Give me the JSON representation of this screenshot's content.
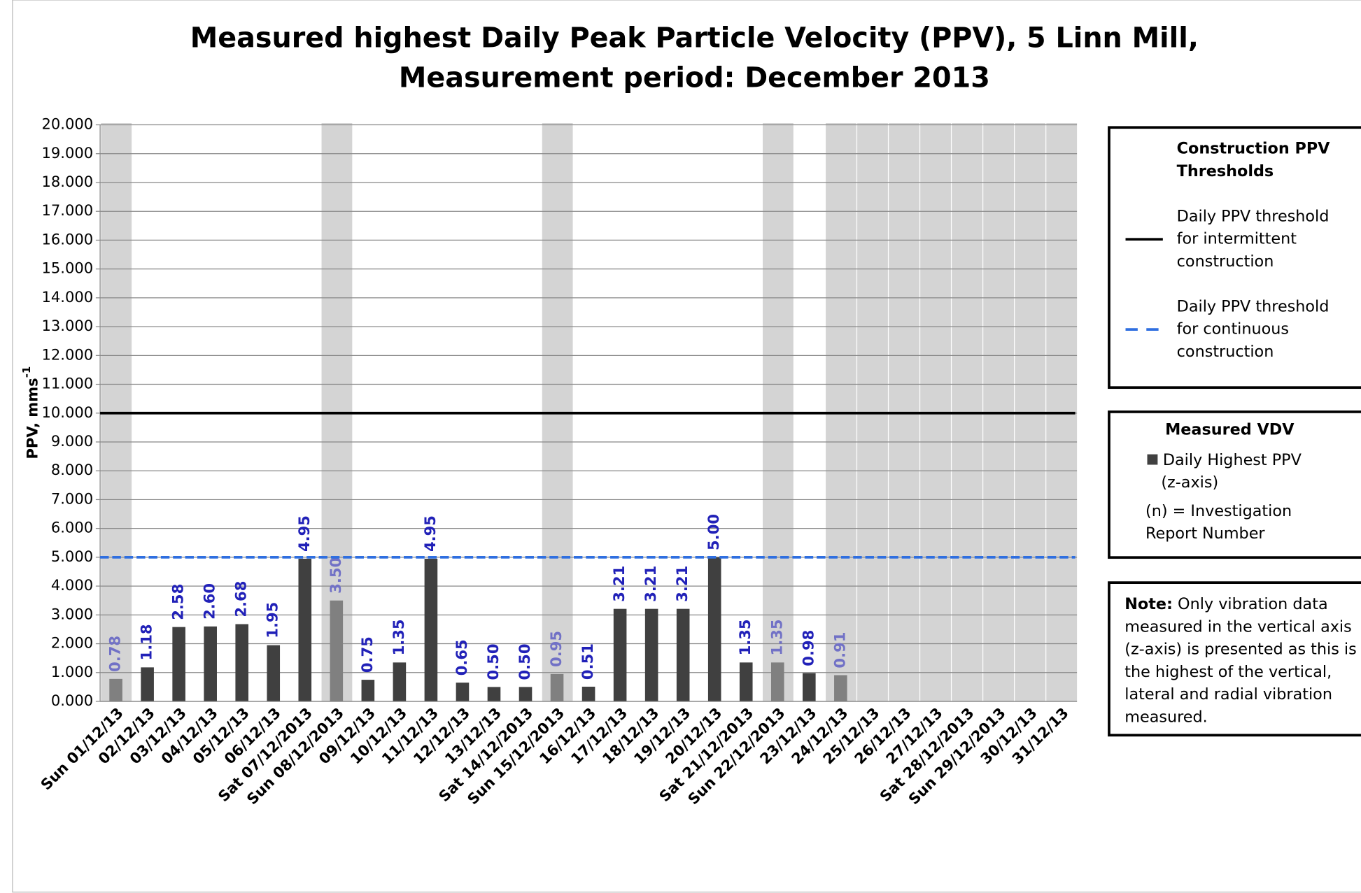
{
  "chart_data": {
    "type": "bar",
    "title_lines": [
      "Measured highest Daily Peak Particle Velocity (PPV), 5 Linn Mill,",
      "Measurement period: December 2013"
    ],
    "y_label": "PPV, mms",
    "y_label_sup": "-1",
    "categories": [
      "Sun 01/12/13",
      "02/12/13",
      "03/12/13",
      "04/12/13",
      "05/12/13",
      "06/12/13",
      "Sat 07/12/2013",
      "Sun 08/12/2013",
      "09/12/13",
      "10/12/13",
      "11/12/13",
      "12/12/13",
      "13/12/13",
      "Sat 14/12/2013",
      "Sun 15/12/2013",
      "16/12/13",
      "17/12/13",
      "18/12/13",
      "19/12/13",
      "20/12/13",
      "Sat 21/12/2013",
      "Sun 22/12/2013",
      "23/12/13",
      "24/12/13",
      "25/12/13",
      "26/12/13",
      "27/12/13",
      "Sat 28/12/2013",
      "Sun 29/12/2013",
      "30/12/13",
      "31/12/13"
    ],
    "values": [
      0.78,
      1.18,
      2.58,
      2.6,
      2.68,
      1.95,
      4.95,
      3.5,
      0.75,
      1.35,
      4.95,
      0.65,
      0.5,
      0.5,
      0.95,
      0.51,
      3.21,
      3.21,
      3.21,
      5.0,
      1.35,
      1.35,
      0.98,
      0.91,
      null,
      null,
      null,
      null,
      null,
      null,
      null
    ],
    "value_labels": [
      "0.78",
      "1.18",
      "2.58",
      "2.60",
      "2.68",
      "1.95",
      "4.95",
      "3.50",
      "0.75",
      "1.35",
      "4.95",
      "0.65",
      "0.50",
      "0.50",
      "0.95",
      "0.51",
      "3.21",
      "3.21",
      "3.21",
      "5.00",
      "1.35",
      "1.35",
      "0.98",
      "0.91",
      null,
      null,
      null,
      null,
      null,
      null,
      null
    ],
    "shaded": [
      true,
      false,
      false,
      false,
      false,
      false,
      false,
      true,
      false,
      false,
      false,
      false,
      false,
      false,
      true,
      false,
      false,
      false,
      false,
      false,
      false,
      true,
      false,
      true,
      true,
      true,
      true,
      true,
      true,
      true,
      true
    ],
    "color": "#404040",
    "shaded_color": "#808080",
    "label_color": "#2121b8",
    "shaded_label_color": "#7171c6",
    "band_color": "#d4d4d4",
    "ylim": [
      0,
      20
    ],
    "yticks": [
      {
        "value": 0,
        "label": "0.000"
      },
      {
        "value": 1,
        "label": "1.000"
      },
      {
        "value": 2,
        "label": "2.000"
      },
      {
        "value": 3,
        "label": "3.000"
      },
      {
        "value": 4,
        "label": "4.000"
      },
      {
        "value": 5,
        "label": "5.000"
      },
      {
        "value": 6,
        "label": "6.000"
      },
      {
        "value": 7,
        "label": "7.000"
      },
      {
        "value": 8,
        "label": "8.000"
      },
      {
        "value": 9,
        "label": "9.000"
      },
      {
        "value": 10,
        "label": "10.000"
      },
      {
        "value": 11,
        "label": "11.000"
      },
      {
        "value": 12,
        "label": "12.000"
      },
      {
        "value": 13,
        "label": "13.000"
      },
      {
        "value": 14,
        "label": "14.000"
      },
      {
        "value": 15,
        "label": "15.000"
      },
      {
        "value": 16,
        "label": "16.000"
      },
      {
        "value": 17,
        "label": "17.000"
      },
      {
        "value": 18,
        "label": "18.000"
      },
      {
        "value": 19,
        "label": "19.000"
      },
      {
        "value": 20,
        "label": "20.000"
      }
    ],
    "grid": true,
    "thresholds": [
      {
        "value": 10,
        "color": "#000000",
        "dashed": false,
        "name_lines": [
          "Daily PPV threshold",
          "for intermittent",
          "construction"
        ]
      },
      {
        "value": 5,
        "color": "#2f6fe0",
        "dashed": true,
        "name_lines": [
          "Daily PPV threshold",
          "for continuous",
          "construction"
        ]
      }
    ],
    "threshold_legend_title": [
      "Construction PPV",
      "Thresholds"
    ],
    "series_legend_title": "Measured VDV",
    "series_name_lines": [
      "Daily Highest PPV",
      "(z-axis)"
    ],
    "legend_note_lines": [
      "(n) = Investigation",
      "Report Number"
    ],
    "note_label": "Note:",
    "note_lines": [
      " Only vibration data",
      "measured in the vertical axis",
      "(z-axis) is presented as this is",
      "the highest of the vertical,",
      "lateral and radial vibration",
      "measured."
    ]
  }
}
